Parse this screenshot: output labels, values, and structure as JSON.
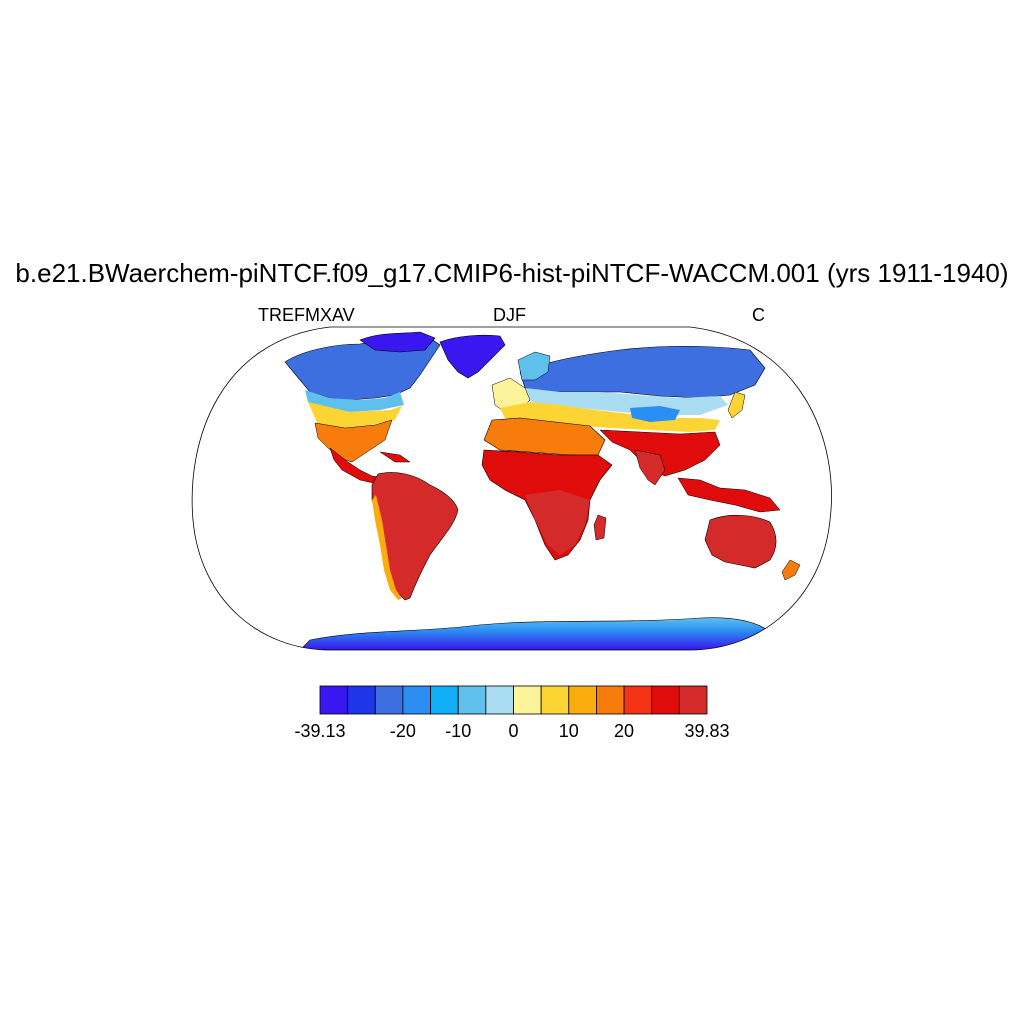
{
  "title": "b.e21.BWaerchem-piNTCF.f09_g17.CMIP6-hist-piNTCF-WACCM.001 (yrs 1911-1940)",
  "left_string": "TREFMXAV",
  "center_string": "DJF",
  "right_string": "C",
  "map": {
    "projection": "robinson",
    "field": "TREFMXAV",
    "season": "DJF",
    "units": "C",
    "coastlines": true,
    "ocean_masked": true
  },
  "colorbar": {
    "colors": [
      "#3a16f0",
      "#1f36e8",
      "#3d6fe0",
      "#2b8ef2",
      "#10aff5",
      "#5fc0ee",
      "#aadcf2",
      "#fdf39a",
      "#fcd534",
      "#fbac0e",
      "#f77c0b",
      "#f43314",
      "#e00b0b",
      "#d42a2a"
    ],
    "labels": [
      {
        "text": "-39.13",
        "boundary": 0
      },
      {
        "text": "-20",
        "boundary": 3
      },
      {
        "text": "-10",
        "boundary": 5
      },
      {
        "text": "0",
        "boundary": 7
      },
      {
        "text": "10",
        "boundary": 9
      },
      {
        "text": "20",
        "boundary": 11
      },
      {
        "text": "39.83",
        "boundary": 14
      }
    ]
  }
}
